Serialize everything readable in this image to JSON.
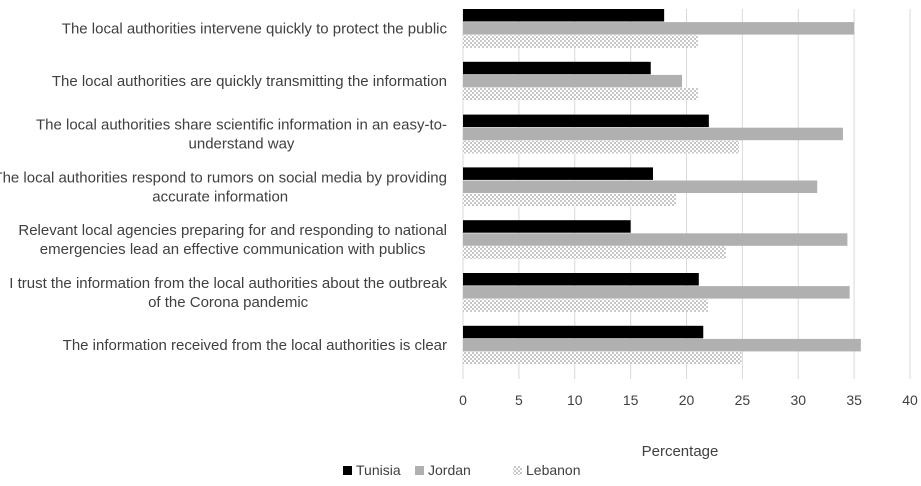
{
  "chart_data": {
    "type": "bar",
    "orientation": "horizontal",
    "categories": [
      [
        "The local authorities intervene quickly to protect the public"
      ],
      [
        "The local authorities are quickly transmitting the information"
      ],
      [
        "The local authorities share scientific information in an easy-to-",
        "understand way"
      ],
      [
        "The local authorities respond to rumors on social media by providing",
        "accurate information"
      ],
      [
        "Relevant local agencies preparing for and responding to national",
        "emergencies lead an effective communication with publics"
      ],
      [
        "I trust the information from the local authorities about the outbreak",
        "of the Corona pandemic"
      ],
      [
        "The information received from the local authorities is clear"
      ]
    ],
    "series": [
      {
        "name": "Tunisia",
        "color": "#000000",
        "fill": "solid",
        "values": [
          18.0,
          16.8,
          22.0,
          17.0,
          15.0,
          21.1,
          21.5
        ]
      },
      {
        "name": "Jordan",
        "color": "#b0b0b0",
        "fill": "solid",
        "values": [
          35.0,
          19.6,
          34.0,
          31.7,
          34.4,
          34.6,
          35.6
        ]
      },
      {
        "name": "Lebanon",
        "color": "#8c8c8c",
        "fill": "dots",
        "values": [
          21.0,
          21.0,
          24.7,
          19.1,
          23.5,
          21.9,
          24.9
        ]
      }
    ],
    "xlim": [
      0,
      40
    ],
    "xticks": [
      0,
      5,
      10,
      15,
      20,
      25,
      30,
      35,
      40
    ],
    "xlabel": "Percentage",
    "grid": "vertical",
    "legend_position": "bottom-center"
  }
}
